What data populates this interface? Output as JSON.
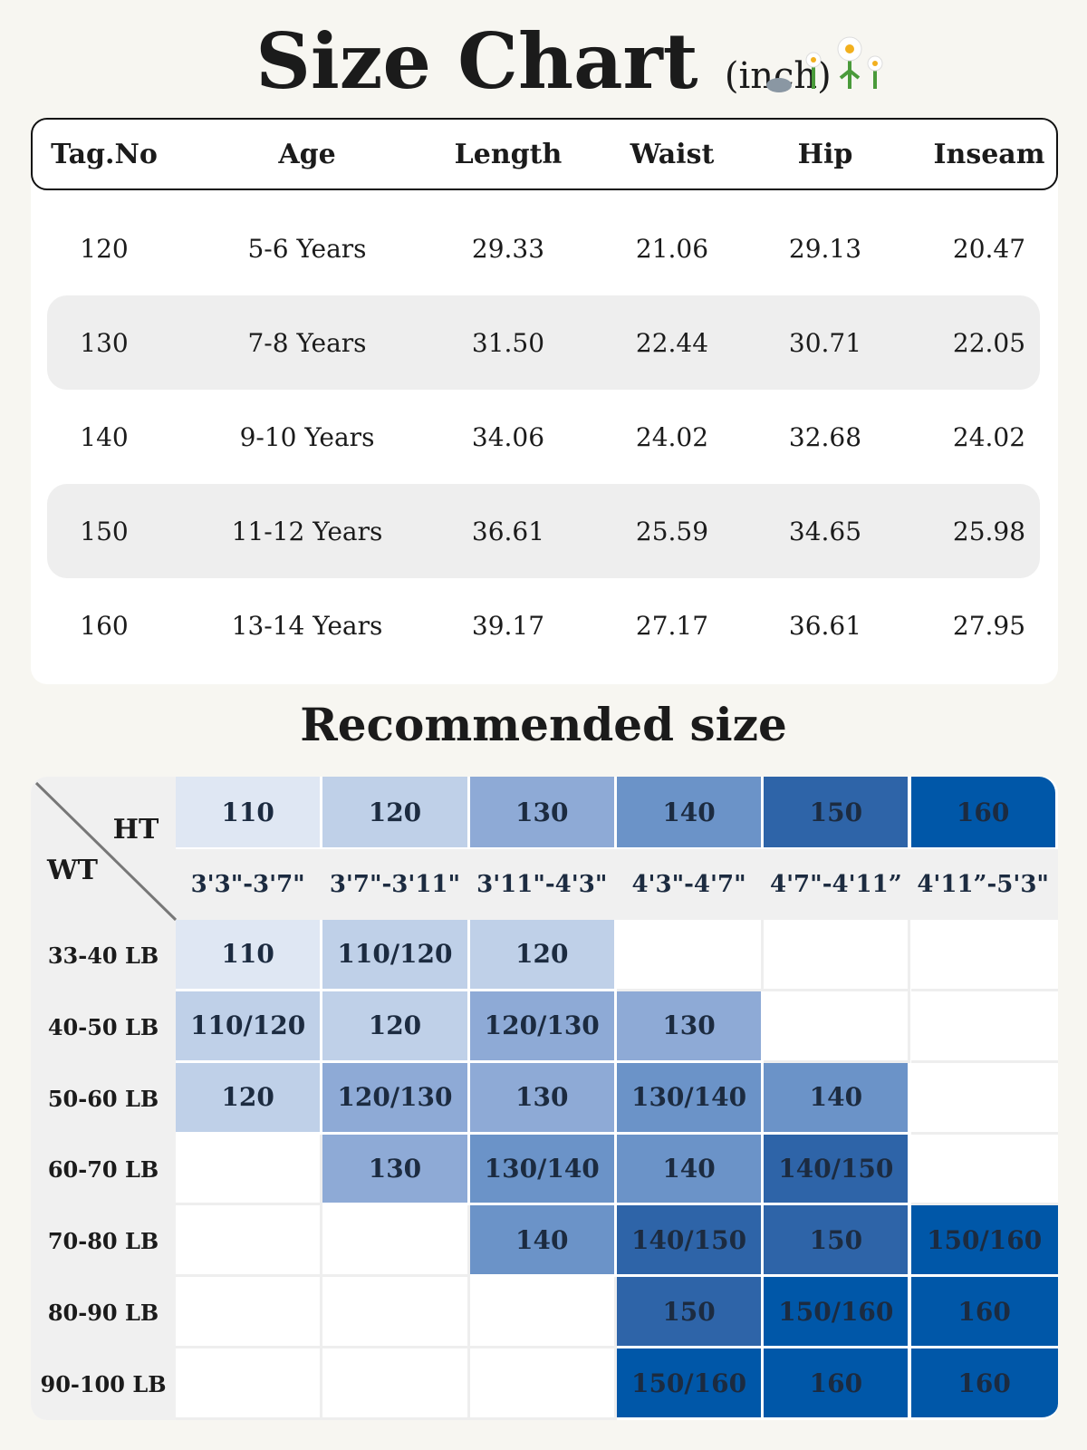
{
  "header": {
    "title": "Size Chart",
    "unit": "(inch)"
  },
  "table": {
    "columns": [
      "Tag.No",
      "Age",
      "Length",
      "Waist",
      "Hip",
      "Inseam"
    ],
    "rows": [
      [
        "120",
        "5-6 Years",
        "29.33",
        "21.06",
        "29.13",
        "20.47"
      ],
      [
        "130",
        "7-8 Years",
        "31.50",
        "22.44",
        "30.71",
        "22.05"
      ],
      [
        "140",
        "9-10 Years",
        "34.06",
        "24.02",
        "32.68",
        "24.02"
      ],
      [
        "150",
        "11-12 Years",
        "36.61",
        "25.59",
        "34.65",
        "25.98"
      ],
      [
        "160",
        "13-14 Years",
        "39.17",
        "27.17",
        "36.61",
        "27.95"
      ]
    ]
  },
  "recommended": {
    "title": "Recommended size",
    "ht_label": "HT",
    "wt_label": "WT",
    "heights": [
      {
        "tag": "110",
        "range": "3'3\"-3'7\"",
        "color": "#dfe7f3"
      },
      {
        "tag": "120",
        "range": "3'7\"-3'11\"",
        "color": "#bfd0e8"
      },
      {
        "tag": "130",
        "range": "3'11\"-4'3\"",
        "color": "#8eaad6"
      },
      {
        "tag": "140",
        "range": "4'3\"-4'7\"",
        "color": "#6b93c8"
      },
      {
        "tag": "150",
        "range": "4'7\"-4'11”",
        "color": "#2e64a8"
      },
      {
        "tag": "160",
        "range": "4'11”-5'3\"",
        "color": "#0057a8"
      }
    ],
    "rows": [
      {
        "weight": "33-40 LB",
        "cells": [
          "110",
          "110/120",
          "120",
          null,
          null,
          null
        ]
      },
      {
        "weight": "40-50 LB",
        "cells": [
          "110/120",
          "120",
          "120/130",
          "130",
          null,
          null
        ]
      },
      {
        "weight": "50-60 LB",
        "cells": [
          "120",
          "120/130",
          "130",
          "130/140",
          "140",
          null
        ]
      },
      {
        "weight": "60-70 LB",
        "cells": [
          null,
          "130",
          "130/140",
          "140",
          "140/150",
          null
        ]
      },
      {
        "weight": "70-80 LB",
        "cells": [
          null,
          null,
          "140",
          "140/150",
          "150",
          "150/160"
        ]
      },
      {
        "weight": "80-90 LB",
        "cells": [
          null,
          null,
          null,
          "150",
          "150/160",
          "160"
        ]
      },
      {
        "weight": "90-100 LB",
        "cells": [
          null,
          null,
          null,
          "150/160",
          "160",
          "160"
        ]
      }
    ]
  }
}
